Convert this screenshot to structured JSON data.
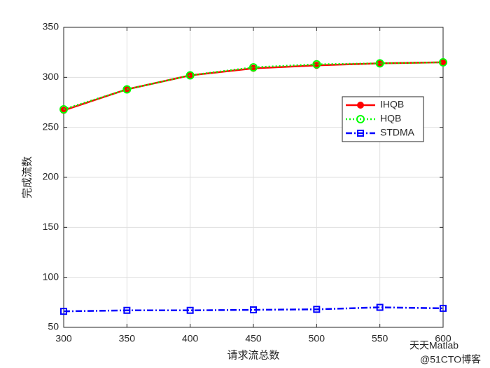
{
  "chart_data": {
    "type": "line",
    "xlabel": "请求流总数",
    "ylabel": "完成流数",
    "x": [
      300,
      350,
      400,
      450,
      500,
      550,
      600
    ],
    "series": [
      {
        "name": "IHQB",
        "color": "#ff0000",
        "marker": "filled-circle",
        "linestyle": "solid",
        "values": [
          267,
          288,
          302,
          309,
          312,
          314,
          315
        ]
      },
      {
        "name": "HQB",
        "color": "#00ff00",
        "marker": "open-circle",
        "linestyle": "dotted",
        "values": [
          268,
          288,
          302,
          310,
          313,
          314,
          315
        ]
      },
      {
        "name": "STDMA",
        "color": "#0000ff",
        "marker": "open-square",
        "linestyle": "dashdot",
        "values": [
          66,
          67,
          67,
          67.5,
          68,
          70,
          69
        ]
      }
    ],
    "xlim": [
      300,
      600
    ],
    "ylim": [
      50,
      350
    ],
    "xticks": [
      300,
      350,
      400,
      450,
      500,
      550,
      600
    ],
    "yticks": [
      50,
      100,
      150,
      200,
      250,
      300,
      350
    ],
    "grid": true,
    "legend_position": "northeast",
    "annotations": [
      "天天Matlab",
      "@51CTO博客"
    ]
  }
}
